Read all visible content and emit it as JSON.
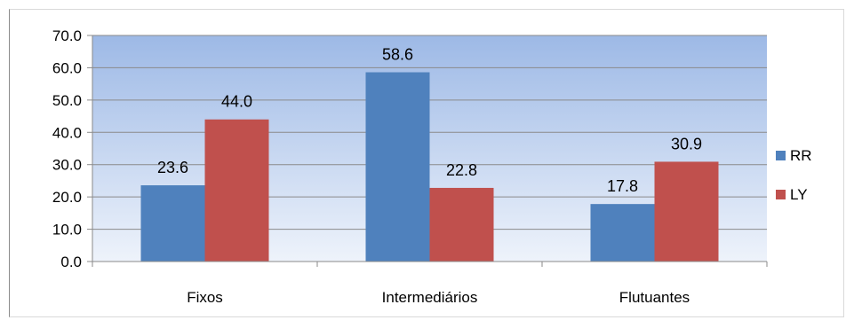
{
  "chart_data": {
    "type": "bar",
    "categories": [
      "Fixos",
      "Intermediários",
      "Flutuantes"
    ],
    "series": [
      {
        "name": "RR",
        "values": [
          23.6,
          58.6,
          17.8
        ],
        "color": "#4f81bd"
      },
      {
        "name": "LY",
        "values": [
          44.0,
          22.8,
          30.9
        ],
        "color": "#c0504d"
      }
    ],
    "value_labels": [
      [
        "23.6",
        "58.6",
        "17.8"
      ],
      [
        "44.0",
        "22.8",
        "30.9"
      ]
    ],
    "ylim": [
      0,
      70
    ],
    "yticks": [
      "0.0",
      "10.0",
      "20.0",
      "30.0",
      "40.0",
      "50.0",
      "60.0",
      "70.0"
    ],
    "grid": true,
    "legend": "right",
    "plot_background": {
      "top": "#9db9e6",
      "bottom": "#eef3fb"
    }
  }
}
